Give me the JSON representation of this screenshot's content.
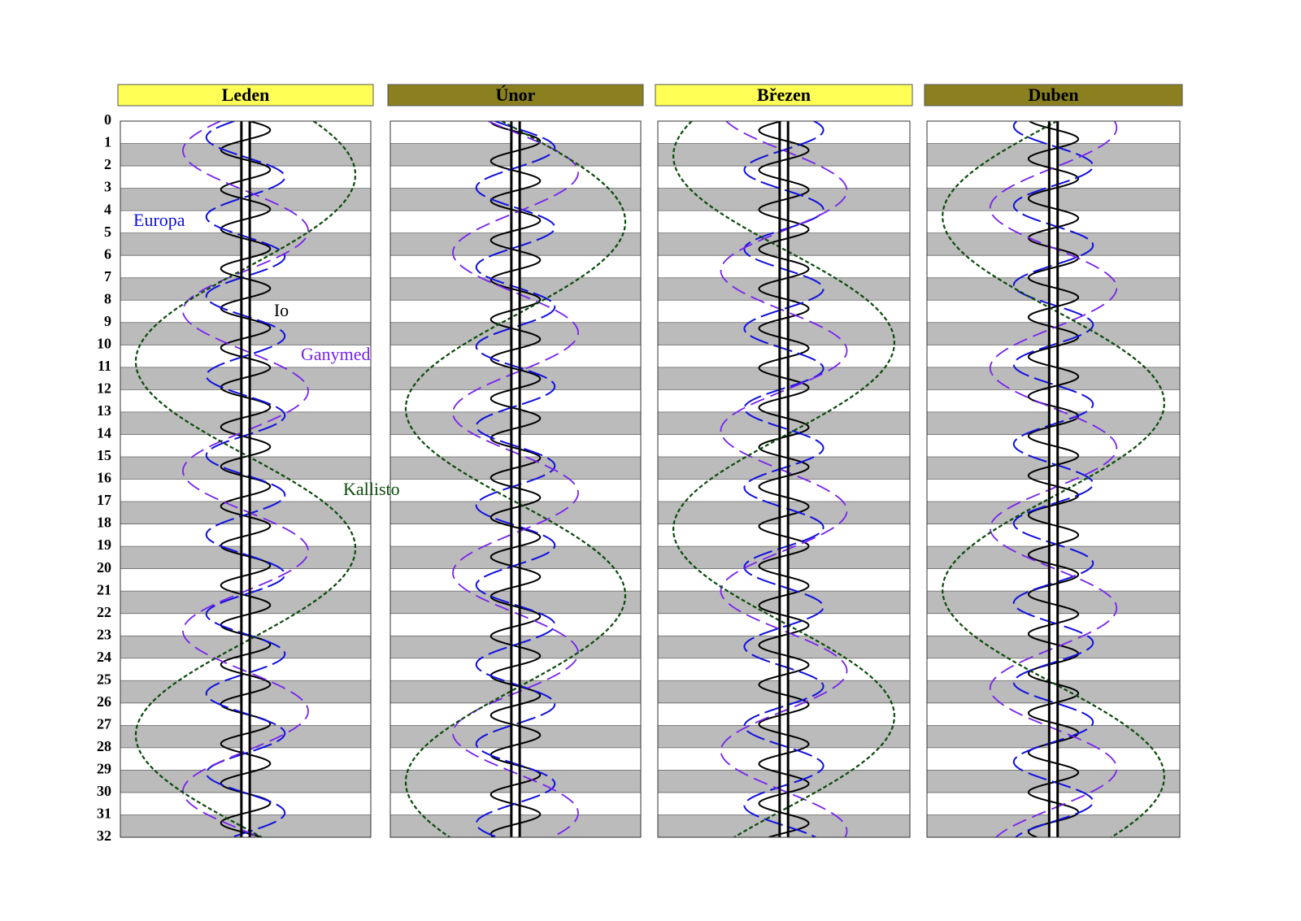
{
  "chart_data": {
    "type": "line",
    "ylim": [
      0,
      32
    ],
    "yticks": [
      0,
      1,
      2,
      3,
      4,
      5,
      6,
      7,
      8,
      9,
      10,
      11,
      12,
      13,
      14,
      15,
      16,
      17,
      18,
      19,
      20,
      21,
      22,
      23,
      24,
      25,
      26,
      27,
      28,
      29,
      30,
      31,
      32
    ],
    "xlim": [
      -30,
      30
    ],
    "jupiter_radius": 1,
    "stripe_color": "#bbbbbb",
    "series": [
      {
        "name": "Io",
        "color": "#000000",
        "amplitude": 5.9,
        "period": 1.769
      },
      {
        "name": "Europa",
        "color": "#1010e0",
        "amplitude": 9.4,
        "period": 3.551
      },
      {
        "name": "Ganymed",
        "color": "#7722ee",
        "amplitude": 15.0,
        "period": 7.155
      },
      {
        "name": "Kallisto",
        "color": "#0a4a0a",
        "amplitude": 26.3,
        "period": 16.689
      }
    ],
    "panels": [
      {
        "title": "Leden",
        "header_color": "#ffff55",
        "t0": [
          0.4,
          2.5,
          4.9,
          2.4
        ]
      },
      {
        "title": "Únor",
        "header_color": "#8b8020",
        "t0": [
          0.9,
          1.2,
          2.3,
          4.5
        ]
      },
      {
        "title": "Březen",
        "header_color": "#ffff55",
        "t0": [
          1.3,
          0.4,
          3.1,
          9.9
        ]
      },
      {
        "title": "Duben",
        "header_color": "#8b8020",
        "t0": [
          0.8,
          2.0,
          0.3,
          12.6
        ]
      }
    ]
  }
}
